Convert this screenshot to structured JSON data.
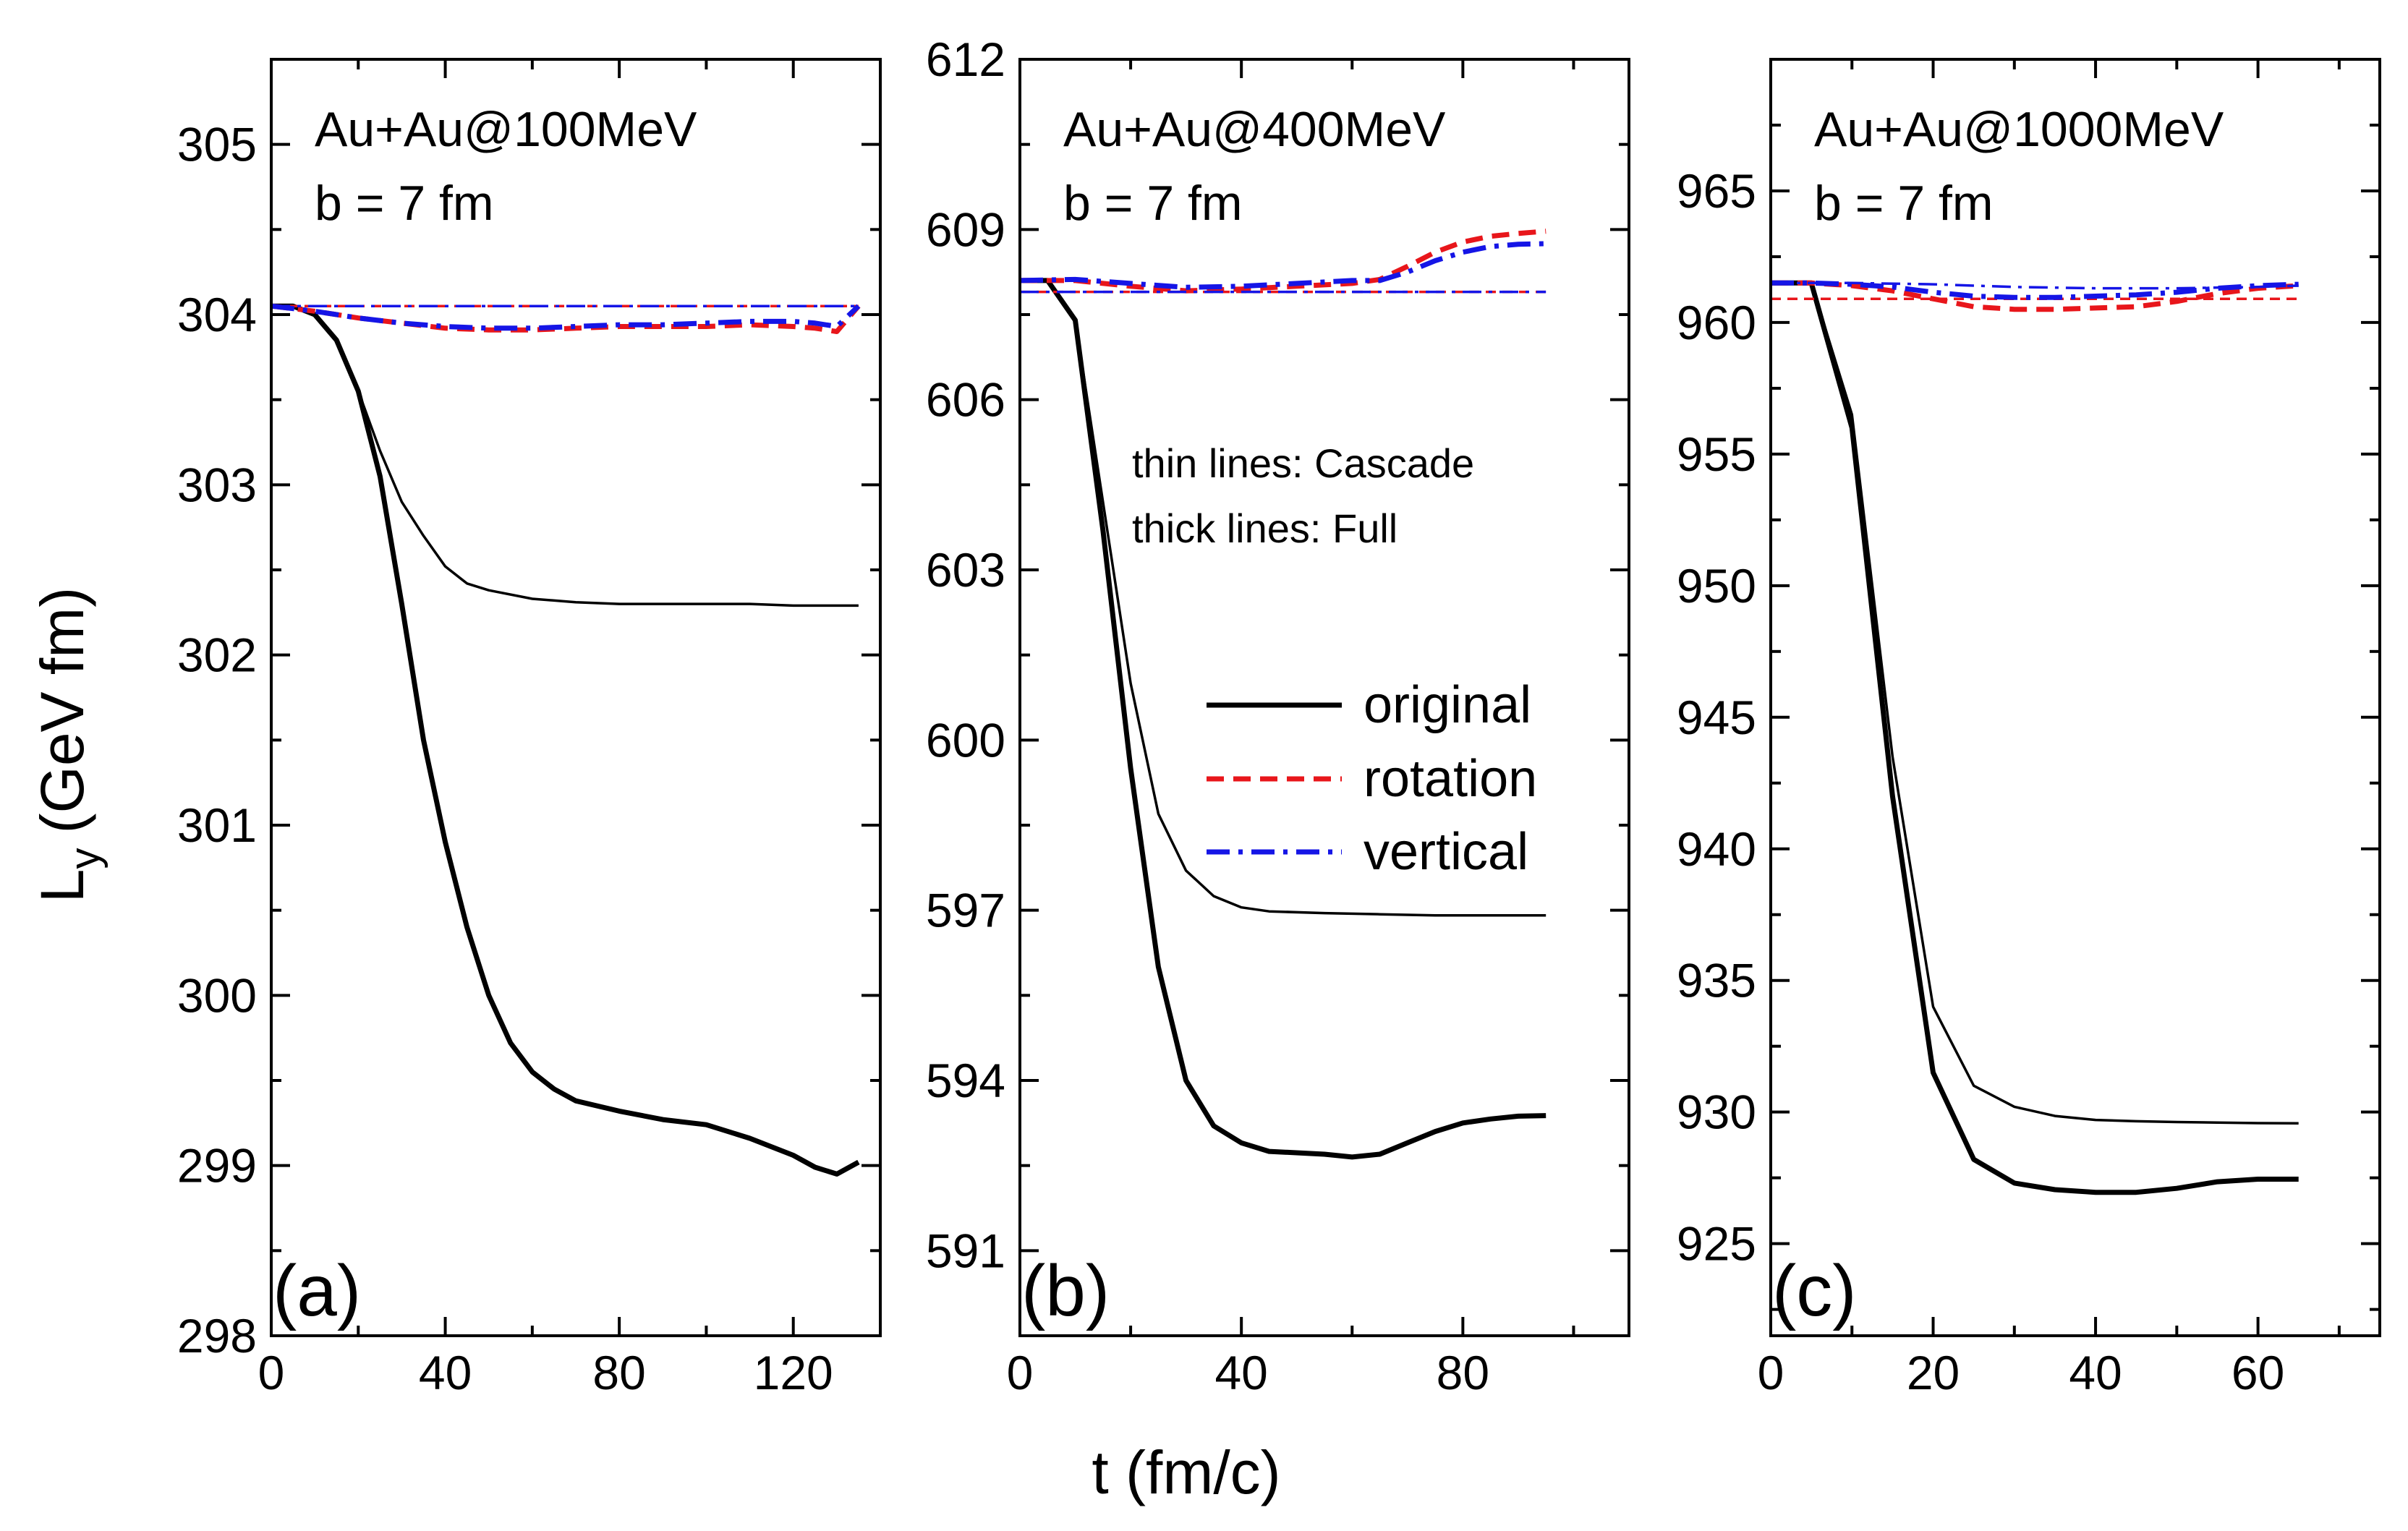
{
  "figure": {
    "ylabel_main": "L",
    "ylabel_sub": "y",
    "ylabel_unit": "(GeV fm)",
    "xlabel": "t (fm/c)"
  },
  "legend": {
    "note_thin": "thin lines: Cascade",
    "note_thick": "thick lines: Full",
    "items": [
      {
        "label": "original",
        "color": "#000000",
        "style": "solid"
      },
      {
        "label": "rotation",
        "color": "#e8161b",
        "style": "dash"
      },
      {
        "label": "vertical",
        "color": "#1515e6",
        "style": "dashdot"
      }
    ]
  },
  "chart_data": [
    {
      "type": "line",
      "panel_label": "(a)",
      "annotation": [
        "Au+Au@100MeV",
        "b = 7 fm"
      ],
      "xlim": [
        0,
        140
      ],
      "ylim": [
        298,
        305.5
      ],
      "xticks": [
        0,
        40,
        80,
        120
      ],
      "xtick_labels": [
        "0",
        "40",
        "80",
        "120"
      ],
      "yticks": [
        298,
        299,
        300,
        301,
        302,
        303,
        304,
        305
      ],
      "ytick_labels": [
        "298",
        "299",
        "300",
        "301",
        "302",
        "303",
        "304",
        "305"
      ],
      "series": [
        {
          "name": "original (Cascade)",
          "weight": "thin",
          "x": [
            0,
            5,
            10,
            15,
            20,
            25,
            30,
            35,
            40,
            45,
            50,
            60,
            70,
            80,
            90,
            100,
            110,
            120,
            130,
            135
          ],
          "y": [
            304.05,
            304.05,
            304.0,
            303.85,
            303.55,
            303.2,
            302.9,
            302.7,
            302.52,
            302.42,
            302.38,
            302.33,
            302.31,
            302.3,
            302.3,
            302.3,
            302.3,
            302.29,
            302.29,
            302.29
          ]
        },
        {
          "name": "original (Full)",
          "weight": "thick",
          "x": [
            0,
            5,
            10,
            15,
            20,
            25,
            30,
            35,
            40,
            45,
            50,
            55,
            60,
            65,
            70,
            80,
            90,
            100,
            110,
            120,
            125,
            130,
            135
          ],
          "y": [
            304.05,
            304.05,
            304.0,
            303.85,
            303.55,
            303.05,
            302.3,
            301.5,
            300.9,
            300.4,
            300.0,
            299.72,
            299.55,
            299.45,
            299.38,
            299.32,
            299.27,
            299.24,
            299.16,
            299.06,
            298.99,
            298.95,
            299.02
          ]
        },
        {
          "name": "rotation (Cascade)",
          "weight": "thin",
          "x": [
            0,
            135
          ],
          "y": [
            304.05,
            304.05
          ]
        },
        {
          "name": "rotation (Full)",
          "weight": "thick",
          "x": [
            0,
            10,
            20,
            30,
            40,
            50,
            60,
            70,
            80,
            90,
            100,
            110,
            120,
            125,
            130,
            135
          ],
          "y": [
            304.05,
            304.02,
            303.98,
            303.95,
            303.92,
            303.91,
            303.91,
            303.92,
            303.93,
            303.93,
            303.93,
            303.94,
            303.93,
            303.92,
            303.9,
            304.05
          ]
        },
        {
          "name": "vertical (Cascade)",
          "weight": "thin",
          "x": [
            0,
            135
          ],
          "y": [
            304.05,
            304.05
          ]
        },
        {
          "name": "vertical (Full)",
          "weight": "thick",
          "x": [
            0,
            10,
            20,
            30,
            40,
            50,
            60,
            70,
            80,
            90,
            100,
            110,
            120,
            125,
            130,
            135
          ],
          "y": [
            304.05,
            304.02,
            303.98,
            303.95,
            303.93,
            303.92,
            303.92,
            303.93,
            303.94,
            303.94,
            303.95,
            303.96,
            303.96,
            303.95,
            303.93,
            304.05
          ]
        }
      ]
    },
    {
      "type": "line",
      "panel_label": "(b)",
      "annotation": [
        "Au+Au@400MeV",
        "b = 7 fm"
      ],
      "xlim": [
        0,
        110
      ],
      "ylim": [
        589.5,
        612
      ],
      "xticks": [
        0,
        40,
        80
      ],
      "xtick_labels": [
        "0",
        "40",
        "80"
      ],
      "yticks": [
        591,
        594,
        597,
        600,
        603,
        606,
        609,
        612
      ],
      "ytick_labels": [
        "591",
        "594",
        "597",
        "600",
        "603",
        "606",
        "609",
        "612"
      ],
      "series": [
        {
          "name": "original (Cascade)",
          "weight": "thin",
          "x": [
            0,
            5,
            10,
            15,
            20,
            25,
            30,
            35,
            40,
            45,
            55,
            65,
            75,
            85,
            95
          ],
          "y": [
            608.1,
            608.1,
            607.4,
            604.2,
            601.0,
            598.7,
            597.7,
            597.25,
            597.05,
            596.98,
            596.95,
            596.93,
            596.91,
            596.91,
            596.91
          ]
        },
        {
          "name": "original (Full)",
          "weight": "thick",
          "x": [
            0,
            5,
            10,
            15,
            20,
            25,
            30,
            35,
            40,
            45,
            55,
            60,
            65,
            70,
            75,
            80,
            85,
            90,
            95
          ],
          "y": [
            608.1,
            608.1,
            607.4,
            603.7,
            599.5,
            596.0,
            594.0,
            593.2,
            592.9,
            592.75,
            592.7,
            592.65,
            592.7,
            592.9,
            593.1,
            593.25,
            593.32,
            593.37,
            593.38
          ]
        },
        {
          "name": "rotation (Cascade)",
          "weight": "thin",
          "x": [
            0,
            95
          ],
          "y": [
            607.9,
            607.9
          ]
        },
        {
          "name": "rotation (Full)",
          "weight": "thick",
          "x": [
            0,
            10,
            20,
            30,
            40,
            50,
            60,
            65,
            70,
            75,
            80,
            85,
            90,
            95
          ],
          "y": [
            608.1,
            608.1,
            608.0,
            607.92,
            607.95,
            608.0,
            608.05,
            608.12,
            608.35,
            608.6,
            608.78,
            608.88,
            608.93,
            608.97
          ]
        },
        {
          "name": "vertical (Cascade)",
          "weight": "thin",
          "x": [
            0,
            95
          ],
          "y": [
            607.9,
            607.9
          ]
        },
        {
          "name": "vertical (Full)",
          "weight": "thick",
          "x": [
            0,
            10,
            20,
            30,
            40,
            50,
            60,
            65,
            70,
            75,
            80,
            85,
            90,
            95
          ],
          "y": [
            608.1,
            608.12,
            608.05,
            607.98,
            608.0,
            608.05,
            608.1,
            608.1,
            608.25,
            608.45,
            608.6,
            608.7,
            608.74,
            608.75
          ]
        }
      ]
    },
    {
      "type": "line",
      "panel_label": "(c)",
      "annotation": [
        "Au+Au@1000MeV",
        "b = 7 fm"
      ],
      "xlim": [
        0,
        75
      ],
      "ylim": [
        921.5,
        970
      ],
      "xticks": [
        0,
        20,
        40,
        60
      ],
      "xtick_labels": [
        "0",
        "20",
        "40",
        "60"
      ],
      "yticks": [
        925,
        930,
        935,
        940,
        945,
        950,
        955,
        960,
        965
      ],
      "ytick_labels": [
        "925",
        "930",
        "935",
        "940",
        "945",
        "950",
        "955",
        "960",
        "965"
      ],
      "series": [
        {
          "name": "original (Cascade)",
          "weight": "thin",
          "x": [
            0,
            5,
            10,
            15,
            20,
            25,
            30,
            35,
            40,
            45,
            50,
            55,
            60,
            65
          ],
          "y": [
            961.5,
            961.5,
            956.5,
            943.5,
            934.0,
            931.0,
            930.2,
            929.85,
            929.7,
            929.65,
            929.62,
            929.6,
            929.58,
            929.57
          ]
        },
        {
          "name": "original (Full)",
          "weight": "thick",
          "x": [
            0,
            5,
            10,
            15,
            20,
            25,
            30,
            35,
            40,
            45,
            50,
            55,
            60,
            65
          ],
          "y": [
            961.5,
            961.5,
            956.0,
            942.0,
            931.5,
            928.2,
            927.3,
            927.05,
            926.95,
            926.95,
            927.1,
            927.35,
            927.45,
            927.45
          ]
        },
        {
          "name": "rotation (Cascade)",
          "weight": "thin",
          "x": [
            0,
            65
          ],
          "y": [
            960.9,
            960.9
          ]
        },
        {
          "name": "rotation (Full)",
          "weight": "thick",
          "x": [
            0,
            5,
            10,
            15,
            20,
            25,
            30,
            35,
            40,
            45,
            50,
            55,
            60,
            65
          ],
          "y": [
            961.5,
            961.5,
            961.4,
            961.2,
            960.9,
            960.6,
            960.5,
            960.5,
            960.55,
            960.6,
            960.8,
            961.1,
            961.3,
            961.4
          ]
        },
        {
          "name": "vertical (Cascade)",
          "weight": "thin",
          "x": [
            0,
            10,
            20,
            30,
            40,
            50,
            60,
            65
          ],
          "y": [
            961.5,
            961.5,
            961.45,
            961.35,
            961.3,
            961.3,
            961.35,
            961.4
          ]
        },
        {
          "name": "vertical (Full)",
          "weight": "thick",
          "x": [
            0,
            5,
            10,
            15,
            20,
            25,
            30,
            35,
            40,
            45,
            50,
            55,
            60,
            65
          ],
          "y": [
            961.5,
            961.5,
            961.45,
            961.35,
            961.15,
            961.0,
            960.95,
            960.95,
            961.0,
            961.05,
            961.15,
            961.3,
            961.4,
            961.45
          ]
        }
      ]
    }
  ]
}
